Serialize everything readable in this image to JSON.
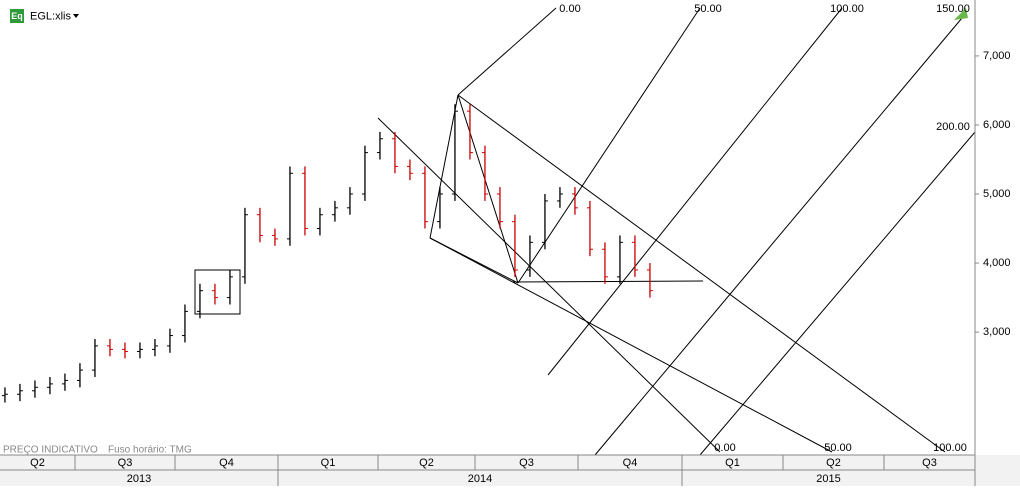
{
  "chart_data": {
    "type": "ohlc",
    "symbol_icon": "Eq",
    "title": "EGL:xlis",
    "footnote": "PREÇO INDICATIVO",
    "timezone_note": "Fuso horário: TMG",
    "up_color": "#000000",
    "down_color": "#cc0000",
    "x": [
      0,
      1,
      2,
      3,
      4,
      5,
      6,
      7,
      8,
      9,
      10,
      11,
      12,
      13,
      14,
      15,
      16,
      17,
      18,
      19,
      20,
      21,
      22,
      23,
      24,
      25,
      26,
      27,
      28,
      29,
      30,
      31,
      32,
      33,
      34,
      35,
      36,
      37,
      38,
      39,
      40,
      41,
      42,
      43
    ],
    "xlim": [
      -0.33,
      64.67
    ],
    "open": [
      2080,
      2100,
      2150,
      2200,
      2250,
      2300,
      2450,
      2800,
      2750,
      2720,
      2750,
      2800,
      2950,
      3300,
      3600,
      3500,
      3800,
      4700,
      4400,
      4350,
      5300,
      4500,
      4700,
      4800,
      5000,
      5600,
      5800,
      5400,
      5300,
      4600,
      5000,
      6200,
      5600,
      5000,
      4600,
      3900,
      4300,
      4900,
      5000,
      4800,
      4200,
      3800,
      4300,
      3900
    ],
    "high": [
      2200,
      2250,
      2300,
      2350,
      2400,
      2550,
      2900,
      2900,
      2850,
      2850,
      2900,
      3050,
      3400,
      3700,
      3700,
      3900,
      4800,
      4800,
      4500,
      5400,
      5400,
      4800,
      4900,
      5100,
      5700,
      5900,
      5900,
      5500,
      5400,
      5100,
      6300,
      6300,
      5700,
      5100,
      4700,
      4400,
      5000,
      5100,
      5100,
      4900,
      4300,
      4400,
      4400,
      4000
    ],
    "low": [
      1980,
      2000,
      2050,
      2100,
      2150,
      2200,
      2350,
      2650,
      2620,
      2620,
      2650,
      2700,
      2850,
      3200,
      3400,
      3400,
      3700,
      4300,
      4250,
      4250,
      4400,
      4400,
      4600,
      4700,
      4900,
      5500,
      5300,
      5200,
      4500,
      4500,
      4900,
      5500,
      4900,
      4500,
      3800,
      3800,
      4200,
      4800,
      4700,
      4100,
      3700,
      3700,
      3800,
      3500
    ],
    "close": [
      2100,
      2150,
      2200,
      2250,
      2300,
      2450,
      2800,
      2750,
      2720,
      2750,
      2800,
      2950,
      3300,
      3600,
      3500,
      3800,
      4700,
      4400,
      4350,
      5300,
      4500,
      4700,
      4800,
      5000,
      5600,
      5800,
      5400,
      5300,
      4600,
      5000,
      6200,
      5600,
      5000,
      4600,
      3900,
      4300,
      4900,
      5000,
      4800,
      4200,
      3800,
      4300,
      3900,
      3600
    ],
    "ylim": [
      1220,
      7810
    ],
    "yticks": [
      {
        "value": 3000,
        "label": "3,000"
      },
      {
        "value": 4000,
        "label": "4,000"
      },
      {
        "value": 5000,
        "label": "5,000"
      },
      {
        "value": 6000,
        "label": "6,000"
      },
      {
        "value": 7000,
        "label": "7,000"
      }
    ],
    "quarters": [
      "Q2",
      "Q3",
      "Q4",
      "Q1",
      "Q2",
      "Q3",
      "Q4",
      "Q1",
      "Q2",
      "Q3"
    ],
    "years": [
      "2013",
      "2014",
      "2015"
    ],
    "fan_labels": [
      "0.00",
      "50.00",
      "100.00",
      "150.00",
      "200.00",
      "0.00",
      "50.00",
      "100.00"
    ]
  }
}
